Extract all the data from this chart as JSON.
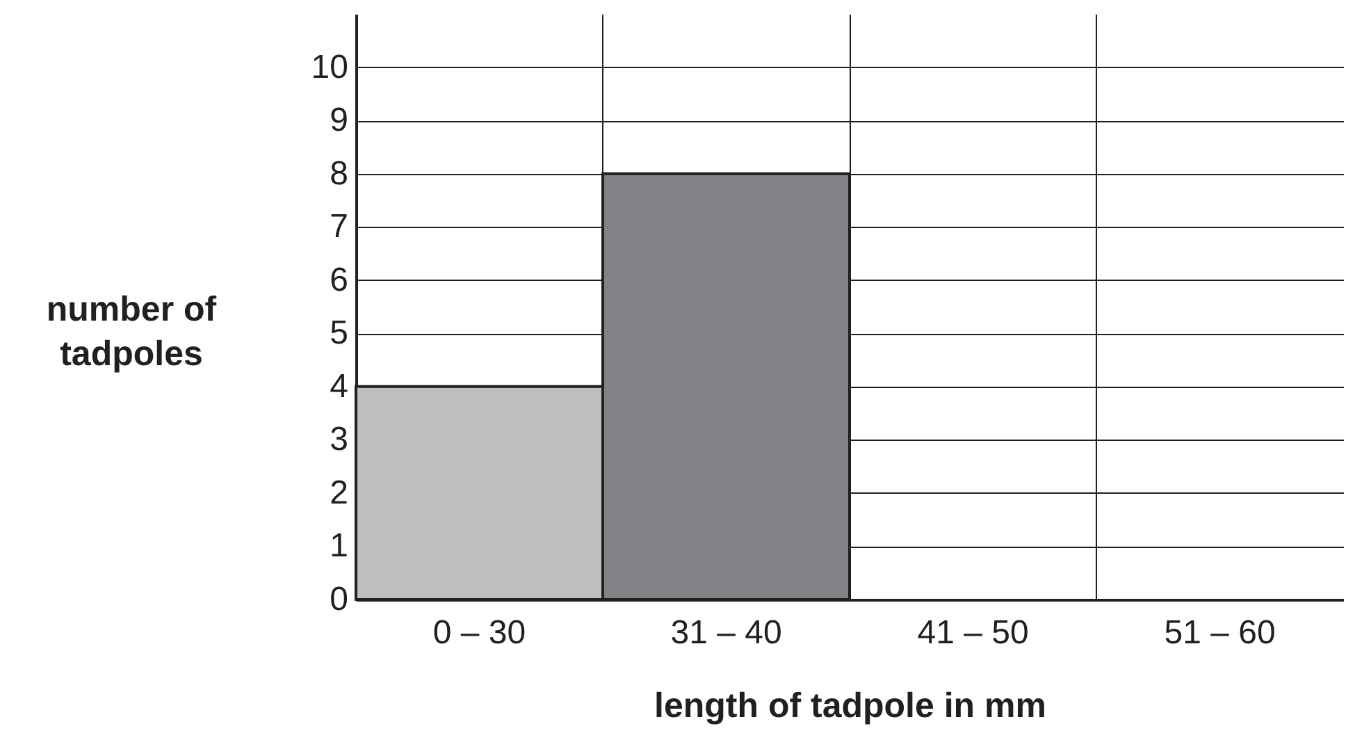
{
  "chart_data": {
    "type": "bar",
    "categories": [
      "0 – 30",
      "31 – 40",
      "41 – 50",
      "51 – 60"
    ],
    "values": [
      4,
      8,
      null,
      null
    ],
    "colors": [
      "#bcbec0",
      "#808285",
      "#808285",
      "#808285"
    ],
    "xlabel": "length of tadpole in mm",
    "ylabel": "number of tadpoles",
    "ylim": [
      0,
      11
    ],
    "yticks": [
      0,
      1,
      2,
      3,
      4,
      5,
      6,
      7,
      8,
      9,
      10
    ],
    "grid": true
  }
}
